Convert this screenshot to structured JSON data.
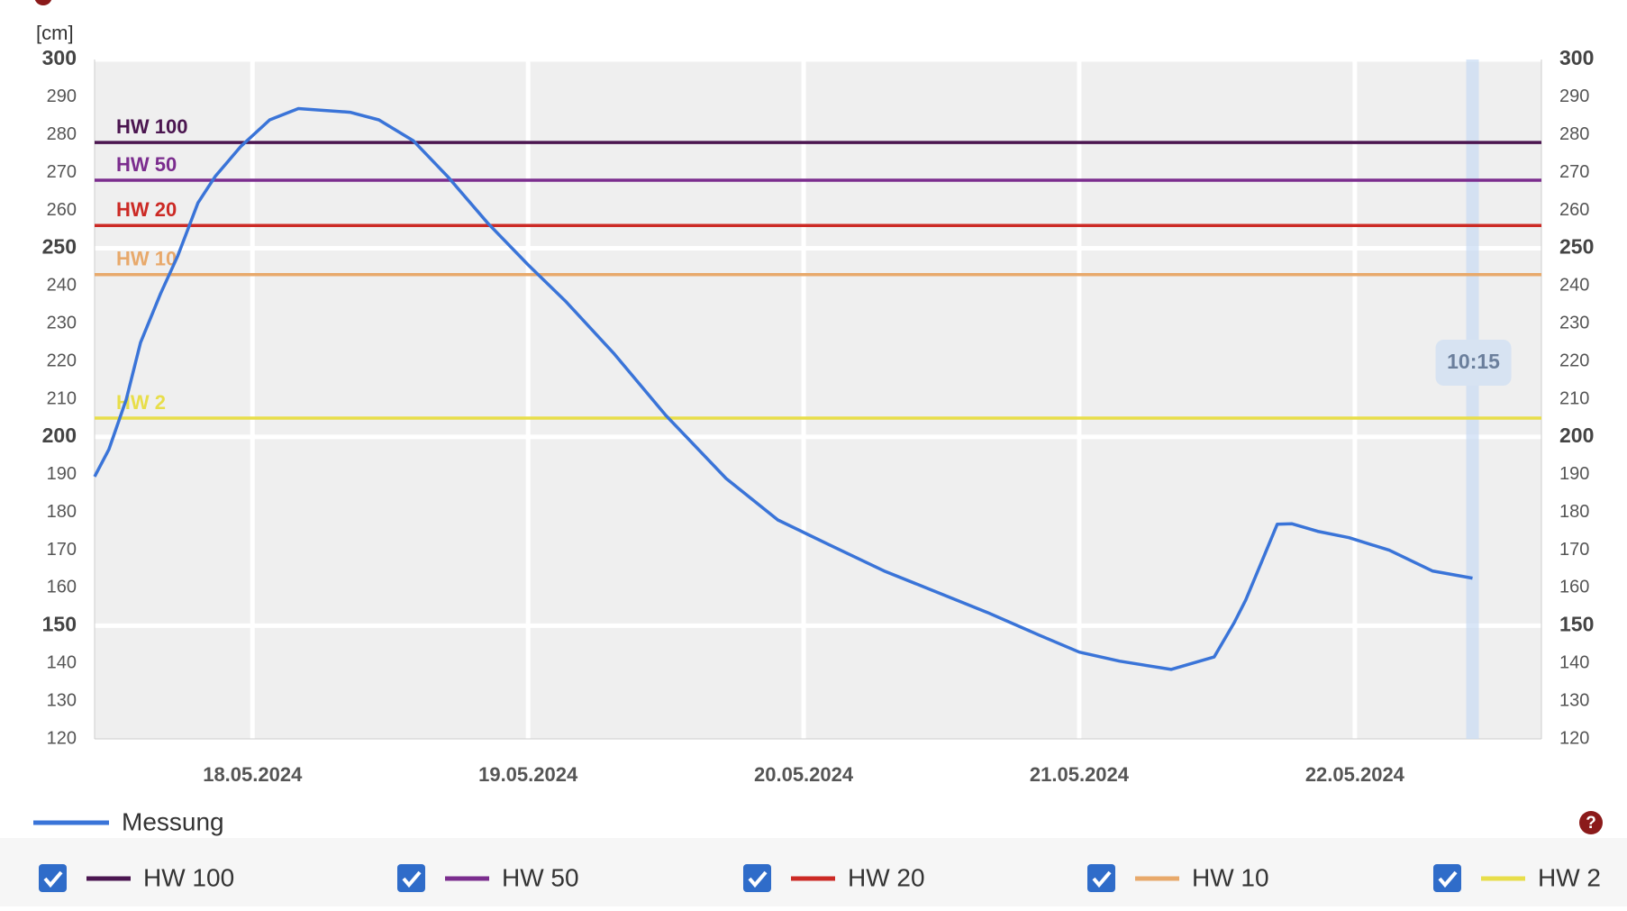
{
  "chart_data": {
    "type": "line",
    "y_unit": "[cm]",
    "ylim": [
      120,
      300
    ],
    "yticks": [
      120,
      130,
      140,
      150,
      160,
      170,
      180,
      190,
      200,
      210,
      220,
      230,
      240,
      250,
      260,
      270,
      280,
      290,
      300
    ],
    "major_yticks": [
      150,
      200,
      250,
      300
    ],
    "xlim": [
      "2024-05-17T10:15",
      "2024-05-22T16:15"
    ],
    "xticks": [
      {
        "value": "2024-05-18T00:00",
        "label": "18.05.2024"
      },
      {
        "value": "2024-05-19T00:00",
        "label": "19.05.2024"
      },
      {
        "value": "2024-05-20T00:00",
        "label": "20.05.2024"
      },
      {
        "value": "2024-05-21T00:00",
        "label": "21.05.2024"
      },
      {
        "value": "2024-05-22T00:00",
        "label": "22.05.2024"
      }
    ],
    "x": [
      "2024-05-17T10:15",
      "2024-05-17T11:30",
      "2024-05-17T13:00",
      "2024-05-17T14:15",
      "2024-05-17T16:00",
      "2024-05-17T17:30",
      "2024-05-17T19:15",
      "2024-05-17T20:45",
      "2024-05-17T23:00",
      "2024-05-18T01:30",
      "2024-05-18T04:00",
      "2024-05-18T08:30",
      "2024-05-18T11:00",
      "2024-05-18T14:00",
      "2024-05-18T17:00",
      "2024-05-18T20:30",
      "2024-05-19T00:00",
      "2024-05-19T03:15",
      "2024-05-19T07:30",
      "2024-05-19T12:00",
      "2024-05-19T17:15",
      "2024-05-19T21:45",
      "2024-05-20T02:15",
      "2024-05-20T07:00",
      "2024-05-20T11:30",
      "2024-05-20T16:00",
      "2024-05-20T20:30",
      "2024-05-21T00:00",
      "2024-05-21T03:30",
      "2024-05-21T08:00",
      "2024-05-21T11:45",
      "2024-05-21T13:30",
      "2024-05-21T14:30",
      "2024-05-21T15:45",
      "2024-05-21T17:15",
      "2024-05-21T18:30",
      "2024-05-21T20:45",
      "2024-05-21T23:30",
      "2024-05-22T03:00",
      "2024-05-22T06:45",
      "2024-05-22T10:15"
    ],
    "series": [
      {
        "name": "Messung",
        "color": "#3a74d8",
        "values": [
          189.5,
          196.7,
          209.9,
          225,
          238,
          248,
          262,
          269,
          277,
          284,
          287,
          286,
          284,
          278.5,
          269,
          256.6,
          245.6,
          236,
          222,
          205.7,
          189,
          178,
          171.4,
          164.5,
          159,
          153.5,
          147.5,
          143,
          140.6,
          138.4,
          141.7,
          150.8,
          156.8,
          165.9,
          176.9,
          177,
          175,
          173.3,
          170,
          164.5,
          162.6
        ]
      }
    ],
    "thresholds": [
      {
        "name": "HW 100",
        "value": 278,
        "color": "#4b1650"
      },
      {
        "name": "HW 50",
        "value": 268,
        "color": "#7b2d8e"
      },
      {
        "name": "HW 20",
        "value": 256,
        "color": "#cc2a25"
      },
      {
        "name": "HW 10",
        "value": 243,
        "color": "#e8a96b"
      },
      {
        "name": "HW 2",
        "value": 205,
        "color": "#e8de4a"
      }
    ],
    "current": {
      "x": "2024-05-22T10:15",
      "label": "10:15"
    }
  }
}
